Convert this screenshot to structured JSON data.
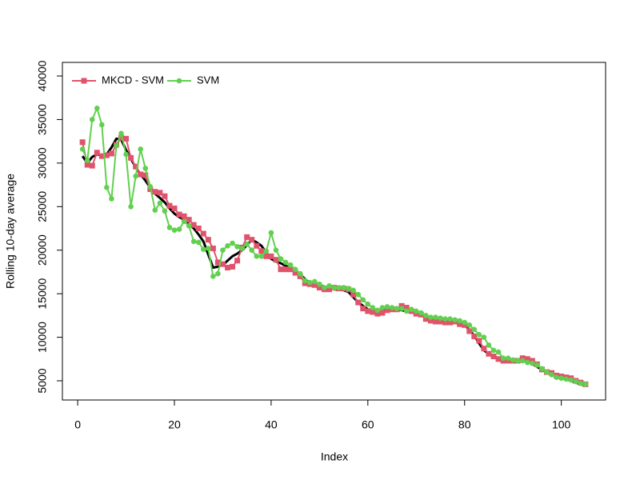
{
  "chart_data": {
    "type": "line",
    "xlabel": "Index",
    "ylabel": "Rolling 10-day average",
    "x": [
      1,
      2,
      3,
      4,
      5,
      6,
      7,
      8,
      9,
      10,
      11,
      12,
      13,
      14,
      15,
      16,
      17,
      18,
      19,
      20,
      21,
      22,
      23,
      24,
      25,
      26,
      27,
      28,
      29,
      30,
      31,
      32,
      33,
      34,
      35,
      36,
      37,
      38,
      39,
      40,
      41,
      42,
      43,
      44,
      45,
      46,
      47,
      48,
      49,
      50,
      51,
      52,
      53,
      54,
      55,
      56,
      57,
      58,
      59,
      60,
      61,
      62,
      63,
      64,
      65,
      66,
      67,
      68,
      69,
      70,
      71,
      72,
      73,
      74,
      75,
      76,
      77,
      78,
      79,
      80,
      81,
      82,
      83,
      84,
      85,
      86,
      87,
      88,
      89,
      90,
      91,
      92,
      93,
      94,
      95,
      96,
      97,
      98,
      99,
      100,
      101,
      102,
      103,
      104,
      105
    ],
    "series": [
      {
        "color": "#000000",
        "values": [
          30800,
          30000,
          30700,
          31000,
          30900,
          31000,
          31800,
          32800,
          32700,
          31500,
          30500,
          29500,
          28700,
          28000,
          27200,
          26500,
          26000,
          25500,
          24800,
          24200,
          23800,
          23500,
          23000,
          22500,
          21800,
          21000,
          19500,
          18000,
          18100,
          18300,
          18800,
          19300,
          19600,
          20000,
          20600,
          21200,
          20900,
          20500,
          19700,
          19000,
          18700,
          18500,
          18200,
          18000,
          17600,
          17200,
          16700,
          16200,
          16100,
          16000,
          15800,
          15600,
          15500,
          15500,
          15400,
          15200,
          14600,
          14000,
          13600,
          13200,
          13100,
          13000,
          13000,
          13100,
          13100,
          13200,
          13100,
          13000,
          12900,
          12800,
          12500,
          12300,
          12100,
          12000,
          11900,
          11800,
          11700,
          11700,
          11500,
          11400,
          10800,
          10200,
          9300,
          8500,
          8100,
          7800,
          7600,
          7400,
          7300,
          7300,
          7300,
          7400,
          7200,
          7000,
          6600,
          6300,
          6000,
          5800,
          5600,
          5500,
          5200,
          5000,
          4800,
          4600,
          4500
        ]
      },
      {
        "name": "MKCD - SVM",
        "color": "#DF536B",
        "marker": "square",
        "values": [
          32400,
          29800,
          29700,
          31200,
          30800,
          30900,
          31100,
          32100,
          32900,
          32800,
          30600,
          29600,
          28700,
          28600,
          27000,
          26700,
          26600,
          26200,
          25100,
          24800,
          24100,
          23900,
          23500,
          22900,
          22500,
          21900,
          21200,
          20200,
          18600,
          18400,
          18000,
          18100,
          18800,
          20300,
          21500,
          21200,
          20500,
          19900,
          19300,
          19300,
          18900,
          17800,
          17800,
          17800,
          17400,
          17000,
          16200,
          16100,
          16000,
          15700,
          15500,
          15500,
          15700,
          15600,
          15600,
          15500,
          14900,
          14000,
          13300,
          13000,
          12900,
          12700,
          12800,
          13100,
          13200,
          13200,
          13600,
          13400,
          13000,
          12700,
          12600,
          12100,
          11900,
          11800,
          11800,
          11700,
          11700,
          11800,
          11500,
          11400,
          10700,
          10100,
          9600,
          8700,
          8100,
          7800,
          7500,
          7300,
          7300,
          7300,
          7300,
          7600,
          7500,
          7300,
          6900,
          6300,
          6000,
          5900,
          5600,
          5500,
          5400,
          5300,
          5000,
          4800,
          4600
        ]
      },
      {
        "name": "SVM",
        "color": "#61D04F",
        "marker": "circle",
        "values": [
          31600,
          30300,
          35000,
          36300,
          34400,
          27200,
          25900,
          32000,
          33400,
          31000,
          25000,
          28500,
          31600,
          29400,
          27300,
          24600,
          25400,
          24500,
          22600,
          22300,
          22400,
          23300,
          22800,
          21000,
          20900,
          20100,
          20200,
          17000,
          17300,
          20000,
          20500,
          20800,
          20400,
          20200,
          20700,
          20000,
          19300,
          19300,
          19900,
          22000,
          20000,
          19000,
          18600,
          18300,
          17800,
          17300,
          16500,
          16300,
          16400,
          16100,
          15700,
          15900,
          15700,
          15700,
          15700,
          15600,
          15400,
          14900,
          14300,
          13800,
          13400,
          13100,
          13400,
          13500,
          13400,
          13300,
          13300,
          13000,
          13200,
          13000,
          12800,
          12500,
          12300,
          12300,
          12200,
          12100,
          12100,
          12000,
          11900,
          11700,
          11400,
          10900,
          10300,
          10000,
          9100,
          8500,
          8300,
          7600,
          7600,
          7400,
          7300,
          7300,
          7100,
          7000,
          6800,
          6400,
          6000,
          5700,
          5400,
          5300,
          5200,
          5100,
          4900,
          4700,
          4600
        ]
      }
    ],
    "xlim": [
      -3.16,
      109.16
    ],
    "xticks": [
      0,
      20,
      40,
      60,
      80,
      100
    ],
    "ylim": [
      2795,
      41562
    ],
    "yticks": [
      5000,
      10000,
      15000,
      20000,
      25000,
      30000,
      35000,
      40000
    ],
    "legend": "topleft",
    "grid": false
  }
}
